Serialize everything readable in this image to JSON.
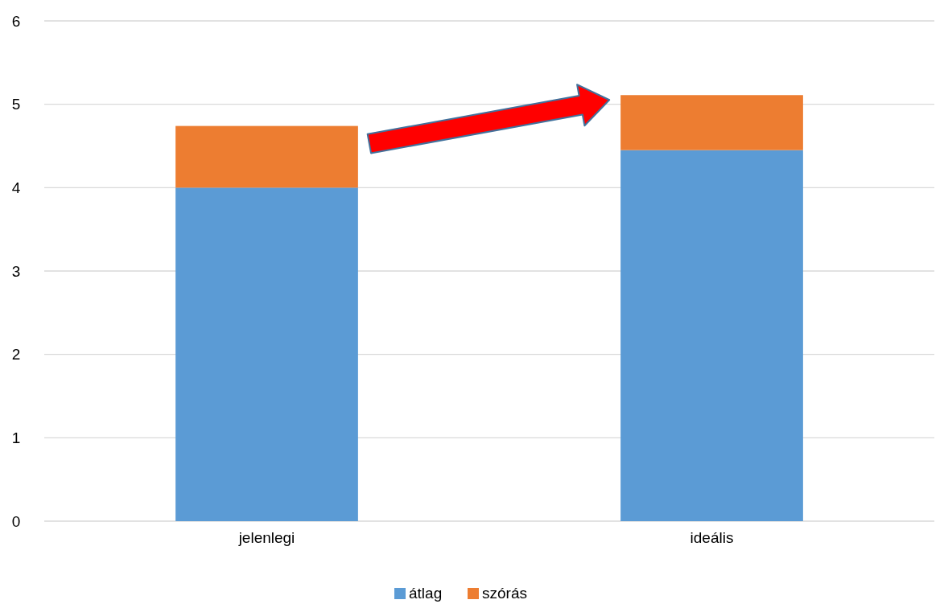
{
  "chart_data": {
    "type": "bar",
    "stacked": true,
    "categories": [
      "jelenlegi",
      "ideális"
    ],
    "series": [
      {
        "name": "átlag",
        "color": "#5b9bd5",
        "values": [
          4.0,
          4.45
        ]
      },
      {
        "name": "szórás",
        "color": "#ed7d31",
        "values": [
          0.74,
          0.66
        ]
      }
    ],
    "ylim": [
      0,
      6
    ],
    "yticks": [
      0,
      1,
      2,
      3,
      4,
      5,
      6
    ],
    "grid": "y",
    "legend": "bottom"
  }
}
